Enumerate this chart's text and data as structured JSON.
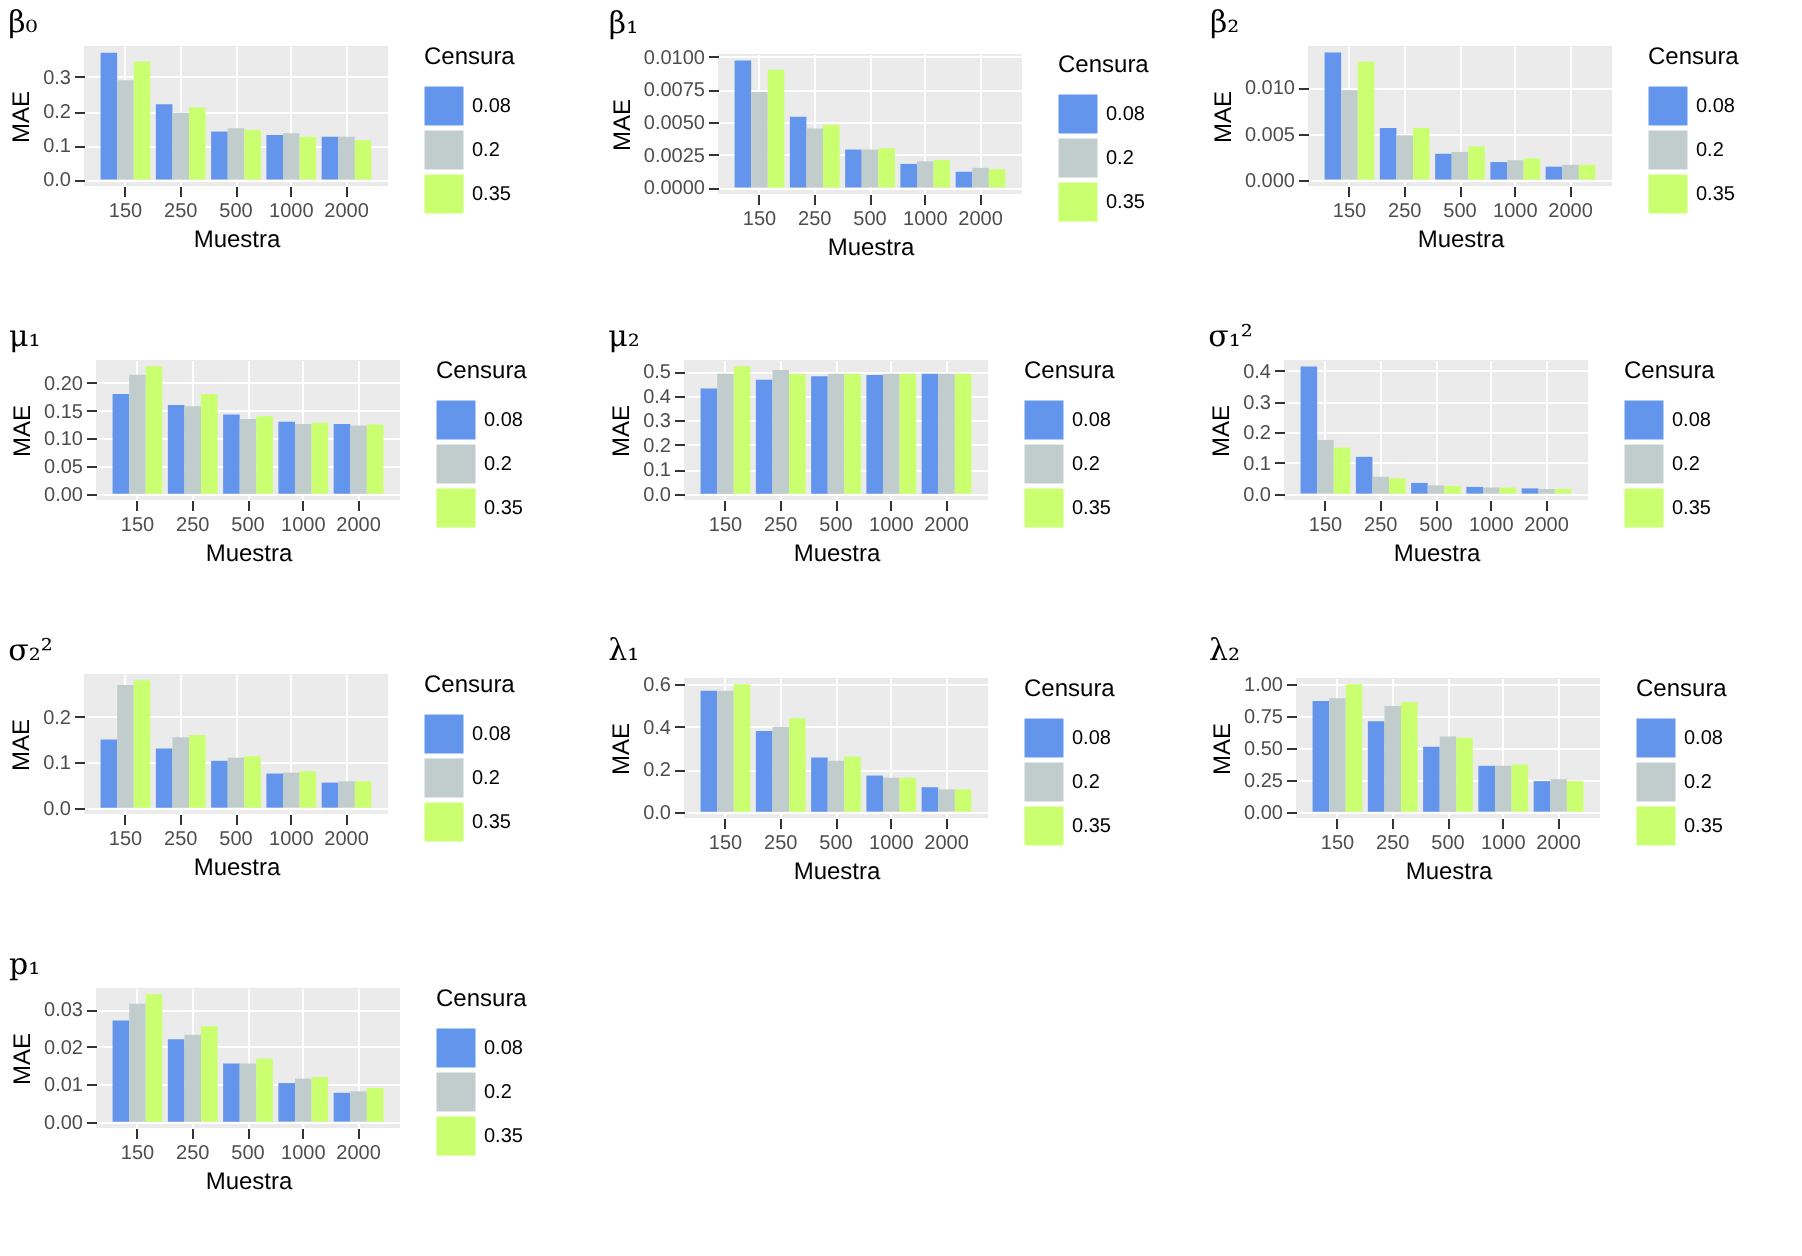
{
  "chart_data": [
    {
      "type": "bar",
      "title": "β₀",
      "xlabel": "Muestra",
      "ylabel": "MAE",
      "legend_title": "Censura",
      "legend": "right",
      "grid": true,
      "categories": [
        "150",
        "250",
        "500",
        "1000",
        "2000"
      ],
      "ylim": [
        -0.019,
        0.39
      ],
      "yticks": [
        {
          "value": 0,
          "label": "0.0"
        },
        0.1,
        0.2,
        0.3
      ],
      "series": [
        {
          "name": "0.08",
          "color": "#6495ed",
          "values": [
            0.37,
            0.22,
            0.14,
            0.13,
            0.125
          ]
        },
        {
          "name": "0.2",
          "color": "#c1cdcd",
          "values": [
            0.29,
            0.195,
            0.15,
            0.135,
            0.125
          ]
        },
        {
          "name": "0.35",
          "color": "#caff70",
          "values": [
            0.345,
            0.21,
            0.145,
            0.125,
            0.115
          ]
        }
      ]
    },
    {
      "type": "bar",
      "title": "β₁",
      "xlabel": "Muestra",
      "ylabel": "MAE",
      "legend_title": "Censura",
      "legend": "right",
      "grid": true,
      "categories": [
        "150",
        "250",
        "500",
        "1000",
        "2000"
      ],
      "ylim": [
        -0.0005,
        0.0102
      ],
      "yticks": [
        {
          "value": 0,
          "label": "0.0000"
        },
        0.0025,
        {
          "value": 0.005,
          "label": "0.0050"
        },
        0.0075,
        {
          "value": 0.01,
          "label": "0.0100"
        }
      ],
      "series": [
        {
          "name": "0.08",
          "color": "#6495ed",
          "values": [
            0.0097,
            0.0054,
            0.0029,
            0.0018,
            0.0012
          ]
        },
        {
          "name": "0.2",
          "color": "#c1cdcd",
          "values": [
            0.0073,
            0.0045,
            0.0029,
            0.002,
            0.0015
          ]
        },
        {
          "name": "0.35",
          "color": "#caff70",
          "values": [
            0.009,
            0.0048,
            0.003,
            0.0021,
            0.0014
          ]
        }
      ]
    },
    {
      "type": "bar",
      "title": "β₂",
      "xlabel": "Muestra",
      "ylabel": "MAE",
      "legend_title": "Censura",
      "legend": "right",
      "grid": true,
      "categories": [
        "150",
        "250",
        "500",
        "1000",
        "2000"
      ],
      "ylim": [
        -0.0007,
        0.0145
      ],
      "yticks": [
        {
          "value": 0,
          "label": "0.000"
        },
        0.005,
        {
          "value": 0.01,
          "label": "0.010"
        }
      ],
      "series": [
        {
          "name": "0.08",
          "color": "#6495ed",
          "values": [
            0.0138,
            0.0056,
            0.0028,
            0.0019,
            0.0014
          ]
        },
        {
          "name": "0.2",
          "color": "#c1cdcd",
          "values": [
            0.0097,
            0.0048,
            0.003,
            0.0021,
            0.0016
          ]
        },
        {
          "name": "0.35",
          "color": "#caff70",
          "values": [
            0.0128,
            0.0056,
            0.0036,
            0.0023,
            0.0016
          ]
        }
      ]
    },
    {
      "type": "bar",
      "title": "μ₁",
      "xlabel": "Muestra",
      "ylabel": "MAE",
      "legend_title": "Censura",
      "legend": "right",
      "grid": true,
      "categories": [
        "150",
        "250",
        "500",
        "1000",
        "2000"
      ],
      "ylim": [
        -0.0115,
        0.2415
      ],
      "yticks": [
        {
          "value": 0,
          "label": "0.00"
        },
        0.05,
        {
          "value": 0.1,
          "label": "0.10"
        },
        0.15,
        {
          "value": 0.2,
          "label": "0.20"
        }
      ],
      "series": [
        {
          "name": "0.08",
          "color": "#6495ed",
          "values": [
            0.18,
            0.16,
            0.143,
            0.13,
            0.126
          ]
        },
        {
          "name": "0.2",
          "color": "#c1cdcd",
          "values": [
            0.215,
            0.158,
            0.135,
            0.126,
            0.123
          ]
        },
        {
          "name": "0.35",
          "color": "#caff70",
          "values": [
            0.23,
            0.18,
            0.14,
            0.128,
            0.125
          ]
        }
      ]
    },
    {
      "type": "bar",
      "title": "μ₂",
      "xlabel": "Muestra",
      "ylabel": "MAE",
      "legend_title": "Censura",
      "legend": "right",
      "grid": true,
      "categories": [
        "150",
        "250",
        "500",
        "1000",
        "2000"
      ],
      "ylim": [
        -0.026,
        0.546
      ],
      "yticks": [
        {
          "value": 0,
          "label": "0.0"
        },
        0.1,
        0.2,
        0.3,
        0.4,
        0.5
      ],
      "series": [
        {
          "name": "0.08",
          "color": "#6495ed",
          "values": [
            0.43,
            0.465,
            0.48,
            0.485,
            0.49
          ]
        },
        {
          "name": "0.2",
          "color": "#c1cdcd",
          "values": [
            0.49,
            0.505,
            0.49,
            0.49,
            0.49
          ]
        },
        {
          "name": "0.35",
          "color": "#caff70",
          "values": [
            0.52,
            0.49,
            0.49,
            0.49,
            0.49
          ]
        }
      ]
    },
    {
      "type": "bar",
      "title": "σ₁²",
      "xlabel": "Muestra",
      "ylabel": "MAE",
      "legend_title": "Censura",
      "legend": "right",
      "grid": true,
      "categories": [
        "150",
        "250",
        "500",
        "1000",
        "2000"
      ],
      "ylim": [
        -0.0208,
        0.4358
      ],
      "yticks": [
        {
          "value": 0,
          "label": "0.0"
        },
        0.1,
        0.2,
        0.3,
        0.4
      ],
      "series": [
        {
          "name": "0.08",
          "color": "#6495ed",
          "values": [
            0.415,
            0.12,
            0.035,
            0.022,
            0.017
          ]
        },
        {
          "name": "0.2",
          "color": "#c1cdcd",
          "values": [
            0.175,
            0.055,
            0.027,
            0.02,
            0.015
          ]
        },
        {
          "name": "0.35",
          "color": "#caff70",
          "values": [
            0.15,
            0.05,
            0.025,
            0.02,
            0.015
          ]
        }
      ]
    },
    {
      "type": "bar",
      "title": "σ₂²",
      "xlabel": "Muestra",
      "ylabel": "MAE",
      "legend_title": "Censura",
      "legend": "right",
      "grid": true,
      "categories": [
        "150",
        "250",
        "500",
        "1000",
        "2000"
      ],
      "ylim": [
        -0.014,
        0.294
      ],
      "yticks": [
        {
          "value": 0,
          "label": "0.0"
        },
        0.1,
        0.2
      ],
      "series": [
        {
          "name": "0.08",
          "color": "#6495ed",
          "values": [
            0.15,
            0.13,
            0.103,
            0.075,
            0.055
          ]
        },
        {
          "name": "0.2",
          "color": "#c1cdcd",
          "values": [
            0.27,
            0.155,
            0.11,
            0.077,
            0.058
          ]
        },
        {
          "name": "0.35",
          "color": "#caff70",
          "values": [
            0.28,
            0.16,
            0.113,
            0.08,
            0.058
          ]
        }
      ]
    },
    {
      "type": "bar",
      "title": "λ₁",
      "xlabel": "Muestra",
      "ylabel": "MAE",
      "legend_title": "Censura",
      "legend": "right",
      "grid": true,
      "categories": [
        "150",
        "250",
        "500",
        "1000",
        "2000"
      ],
      "ylim": [
        -0.03,
        0.63
      ],
      "yticks": [
        {
          "value": 0,
          "label": "0.0"
        },
        0.2,
        0.4,
        0.6
      ],
      "series": [
        {
          "name": "0.08",
          "color": "#6495ed",
          "values": [
            0.57,
            0.38,
            0.255,
            0.17,
            0.115
          ]
        },
        {
          "name": "0.2",
          "color": "#c1cdcd",
          "values": [
            0.57,
            0.4,
            0.24,
            0.16,
            0.105
          ]
        },
        {
          "name": "0.35",
          "color": "#caff70",
          "values": [
            0.6,
            0.44,
            0.26,
            0.16,
            0.105
          ]
        }
      ]
    },
    {
      "type": "bar",
      "title": "λ₂",
      "xlabel": "Muestra",
      "ylabel": "MAE",
      "legend_title": "Censura",
      "legend": "right",
      "grid": true,
      "categories": [
        "150",
        "250",
        "500",
        "1000",
        "2000"
      ],
      "ylim": [
        -0.05,
        1.05
      ],
      "yticks": [
        {
          "value": 0,
          "label": "0.00"
        },
        0.25,
        {
          "value": 0.5,
          "label": "0.50"
        },
        0.75,
        {
          "value": 1,
          "label": "1.00"
        }
      ],
      "series": [
        {
          "name": "0.08",
          "color": "#6495ed",
          "values": [
            0.87,
            0.71,
            0.51,
            0.36,
            0.24
          ]
        },
        {
          "name": "0.2",
          "color": "#c1cdcd",
          "values": [
            0.89,
            0.83,
            0.59,
            0.36,
            0.255
          ]
        },
        {
          "name": "0.35",
          "color": "#caff70",
          "values": [
            1.0,
            0.86,
            0.58,
            0.37,
            0.24
          ]
        }
      ]
    },
    {
      "type": "bar",
      "title": "p₁",
      "xlabel": "Muestra",
      "ylabel": "MAE",
      "legend_title": "Censura",
      "legend": "right",
      "grid": true,
      "categories": [
        "150",
        "250",
        "500",
        "1000",
        "2000"
      ],
      "ylim": [
        -0.0017,
        0.0357
      ],
      "yticks": [
        {
          "value": 0,
          "label": "0.00"
        },
        0.01,
        0.02,
        0.03
      ],
      "series": [
        {
          "name": "0.08",
          "color": "#6495ed",
          "values": [
            0.027,
            0.022,
            0.0155,
            0.0103,
            0.0077
          ]
        },
        {
          "name": "0.2",
          "color": "#c1cdcd",
          "values": [
            0.0315,
            0.0232,
            0.0155,
            0.0115,
            0.0081
          ]
        },
        {
          "name": "0.35",
          "color": "#caff70",
          "values": [
            0.034,
            0.0255,
            0.0168,
            0.0119,
            0.009
          ]
        }
      ]
    }
  ]
}
